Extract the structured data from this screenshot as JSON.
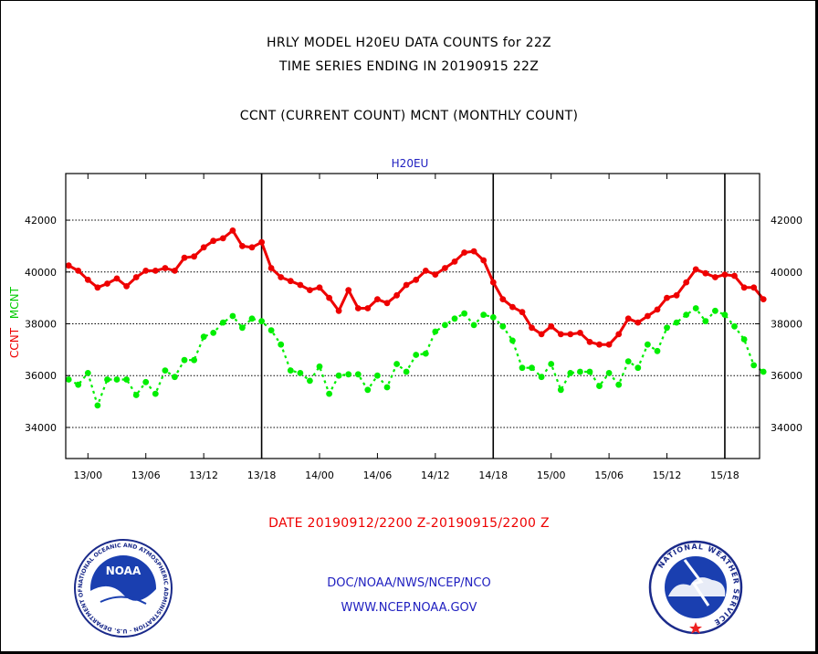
{
  "titles": {
    "line1": "HRLY MODEL H20EU DATA COUNTS for 22Z",
    "line2": "TIME SERIES ENDING IN 20190915 22Z",
    "line3": "CCNT (CURRENT COUNT) MCNT (MONTHLY COUNT)"
  },
  "footer": {
    "date_range": "DATE 20190912/2200 Z-20190915/2200 Z",
    "org": "DOC/NOAA/NWS/NCEP/NCO",
    "url": "WWW.NCEP.NOAA.GOV",
    "left_logo_text": "NOAA",
    "left_logo_ring_text": "NATIONAL OCEANIC AND ATMOSPHERIC ADMINISTRATION · U.S. DEPARTMENT OF COMMERCE",
    "right_logo_ring_text": "NATIONAL WEATHER SERVICE"
  },
  "colors": {
    "ccnt": "#ee0000",
    "mcnt": "#00ee00",
    "axis_label_ccnt": "#ee0000",
    "axis_label_mcnt": "#00cc00",
    "panel_label": "#2020c0",
    "date_text": "#ee0000"
  },
  "chart_data": {
    "type": "line",
    "title": "H20EU",
    "ylabel_ccnt": "CCNT",
    "ylabel_mcnt": "MCNT",
    "ylim": [
      32800,
      43800
    ],
    "yticks": [
      34000,
      36000,
      38000,
      40000,
      42000
    ],
    "ytick_labels": [
      "34000",
      "36000",
      "38000",
      "40000",
      "42000"
    ],
    "xlim": [
      -0.3,
      71.6
    ],
    "xticks": [
      2,
      8,
      14,
      20,
      26,
      32,
      38,
      44,
      50,
      56,
      62,
      68
    ],
    "xtick_labels": [
      "13/00",
      "13/06",
      "13/12",
      "13/18",
      "14/00",
      "14/06",
      "14/12",
      "14/18",
      "15/00",
      "15/06",
      "15/12",
      "15/18"
    ],
    "day_lines": [
      20,
      44,
      68
    ],
    "grid": true,
    "series": [
      {
        "name": "CCNT",
        "color": "#ee0000",
        "values": [
          40250,
          40050,
          39700,
          39400,
          39550,
          39750,
          39450,
          39800,
          40050,
          40050,
          40150,
          40050,
          40550,
          40600,
          40950,
          41200,
          41300,
          41600,
          41000,
          40950,
          41150,
          40150,
          39800,
          39650,
          39500,
          39300,
          39400,
          39000,
          38500,
          39300,
          38600,
          38600,
          38950,
          38800,
          39100,
          39500,
          39700,
          40050,
          39900,
          40150,
          40400,
          40750,
          40800,
          40450,
          39600,
          38950,
          38650,
          38450,
          37850,
          37600,
          37900,
          37600,
          37600,
          37650,
          37300,
          37200,
          37200,
          37600,
          38200,
          38050,
          38300,
          38550,
          39000,
          39100,
          39600,
          40100,
          39950,
          39800,
          39900,
          39850,
          39400,
          39400,
          38950
        ]
      },
      {
        "name": "MCNT",
        "color": "#00ee00",
        "values": [
          35850,
          35650,
          36100,
          34850,
          35850,
          35850,
          35850,
          35250,
          35750,
          35300,
          36200,
          35950,
          36600,
          36600,
          37500,
          37650,
          38050,
          38300,
          37850,
          38200,
          38100,
          37750,
          37200,
          36200,
          36100,
          35800,
          36350,
          35300,
          36000,
          36050,
          36050,
          35450,
          36000,
          35550,
          36450,
          36150,
          36800,
          36850,
          37700,
          37950,
          38200,
          38400,
          37950,
          38350,
          38250,
          37900,
          37350,
          36300,
          36300,
          35950,
          36450,
          35450,
          36100,
          36150,
          36150,
          35600,
          36100,
          35650,
          36550,
          36300,
          37200,
          36950,
          37850,
          38050,
          38350,
          38600,
          38100,
          38500,
          38350,
          37900,
          37400,
          36400,
          36150
        ]
      }
    ]
  }
}
